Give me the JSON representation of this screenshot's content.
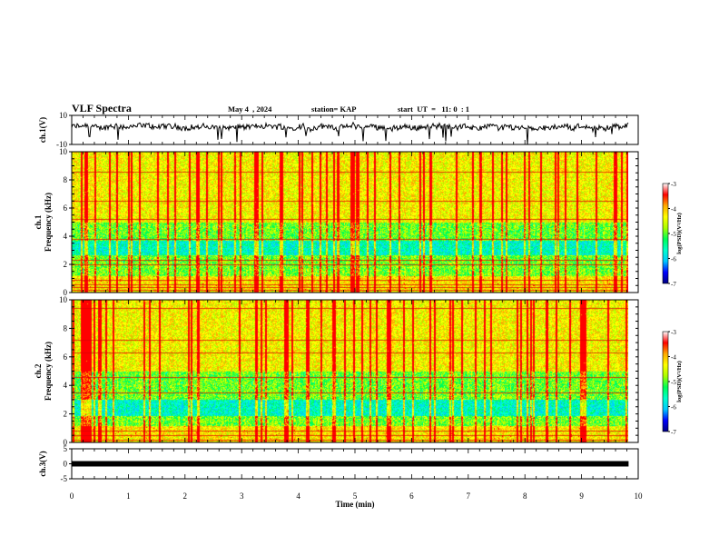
{
  "header": {
    "title": "VLF Spectra",
    "date": "May 4  , 2024",
    "station": "station= KAP",
    "start": "start  UT  =   11: 0  : 1"
  },
  "chart_data": [
    {
      "type": "line",
      "panel": "ch1-waveform",
      "ylabel": "ch.1(V)",
      "ylim": [
        -10,
        10
      ],
      "yticks": [
        "-10",
        "10"
      ],
      "mean": 2.0,
      "amplitude": 3.5,
      "color": "#000000"
    },
    {
      "type": "heatmap",
      "panel": "ch1-spectrogram",
      "ylabel": "ch.1\nFrequency  (kHz)",
      "ylim": [
        0,
        10
      ],
      "yticks": [
        "0",
        "2",
        "4",
        "6",
        "8",
        "10"
      ],
      "zlim": [
        -7,
        -3
      ],
      "colorbar": {
        "label": "log(PSD)(V²/Hz)",
        "ticks": [
          "-3",
          "-4",
          "-5",
          "-6",
          "-7"
        ]
      },
      "quiet_bands_khz": [
        [
          2.7,
          3.7
        ]
      ],
      "strong_lines_khz": [
        0.2,
        0.4,
        0.6,
        0.9,
        2.0,
        2.3,
        3.8,
        5.2,
        6.5,
        8.6
      ]
    },
    {
      "type": "heatmap",
      "panel": "ch2-spectrogram",
      "ylabel": "ch.2\nFrequency  (kHz)",
      "ylim": [
        0,
        10
      ],
      "yticks": [
        "0",
        "2",
        "4",
        "6",
        "8",
        "10"
      ],
      "zlim": [
        -7,
        -3
      ],
      "colorbar": {
        "label": "log(PSD)(V²/Hz)",
        "ticks": [
          "-3",
          "-4",
          "-5",
          "-6",
          "-7"
        ]
      },
      "quiet_bands_khz": [
        [
          1.9,
          3.0
        ]
      ],
      "strong_lines_khz": [
        0.2,
        0.5,
        0.8,
        3.5,
        4.6,
        6.3,
        7.2,
        9.4
      ]
    },
    {
      "type": "line",
      "panel": "ch3-waveform",
      "ylabel": "ch.3(V)",
      "ylim": [
        -5,
        5
      ],
      "yticks": [
        "-5",
        "0",
        "5"
      ],
      "mean": 0,
      "amplitude": 0.6,
      "color": "#000000"
    }
  ],
  "x_axis": {
    "label": "Time  (min)",
    "range": [
      0,
      10
    ],
    "ticks": [
      "0",
      "1",
      "2",
      "3",
      "4",
      "5",
      "6",
      "7",
      "8",
      "9",
      "10"
    ],
    "data_end": 9.83
  },
  "colormap": [
    "#000080",
    "#0000ff",
    "#00c8ff",
    "#00ffcc",
    "#00ff55",
    "#aaff00",
    "#ffff00",
    "#ffaa00",
    "#ff0000",
    "#ffffff"
  ]
}
